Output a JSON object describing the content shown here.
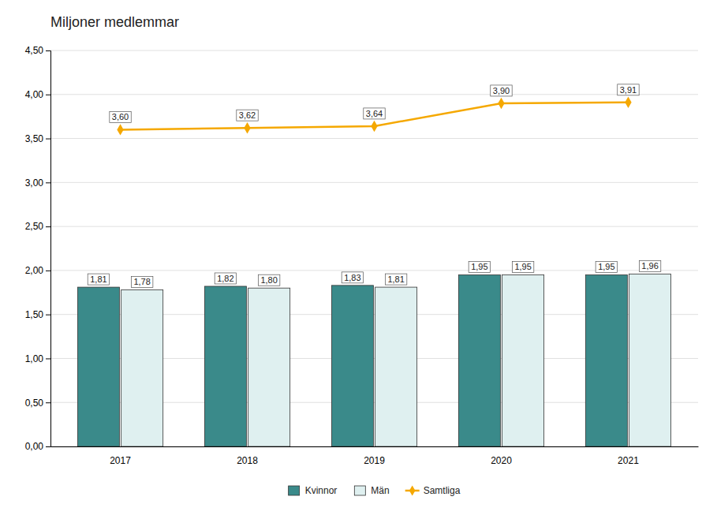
{
  "chart_data": {
    "type": "bar",
    "title": "Miljoner medlemmar",
    "categories": [
      "2017",
      "2018",
      "2019",
      "2020",
      "2021"
    ],
    "series": [
      {
        "name": "Kvinnor",
        "type": "bar",
        "color": "#3a8a8a",
        "values": [
          1.81,
          1.82,
          1.83,
          1.95,
          1.95
        ],
        "value_labels": [
          "1,81",
          "1,82",
          "1,83",
          "1,95",
          "1,95"
        ]
      },
      {
        "name": "Män",
        "type": "bar",
        "color": "#dff0f0",
        "values": [
          1.78,
          1.8,
          1.81,
          1.95,
          1.96
        ],
        "value_labels": [
          "1,78",
          "1,80",
          "1,81",
          "1,95",
          "1,96"
        ]
      },
      {
        "name": "Samtliga",
        "type": "line",
        "color": "#f5a800",
        "marker": "diamond",
        "values": [
          3.6,
          3.62,
          3.64,
          3.9,
          3.91
        ],
        "value_labels": [
          "3,60",
          "3,62",
          "3,64",
          "3,90",
          "3,91"
        ]
      }
    ],
    "ylim": [
      0,
      4.5
    ],
    "yticks": [
      {
        "value": 0.0,
        "label": "0,00"
      },
      {
        "value": 0.5,
        "label": "0,50"
      },
      {
        "value": 1.0,
        "label": "1,00"
      },
      {
        "value": 1.5,
        "label": "1,50"
      },
      {
        "value": 2.0,
        "label": "2,00"
      },
      {
        "value": 2.5,
        "label": "2,50"
      },
      {
        "value": 3.0,
        "label": "3,00"
      },
      {
        "value": 3.5,
        "label": "3,50"
      },
      {
        "value": 4.0,
        "label": "4,00"
      },
      {
        "value": 4.5,
        "label": "4,50"
      }
    ],
    "grid": true,
    "data_labels": true,
    "legend": "bottom"
  }
}
